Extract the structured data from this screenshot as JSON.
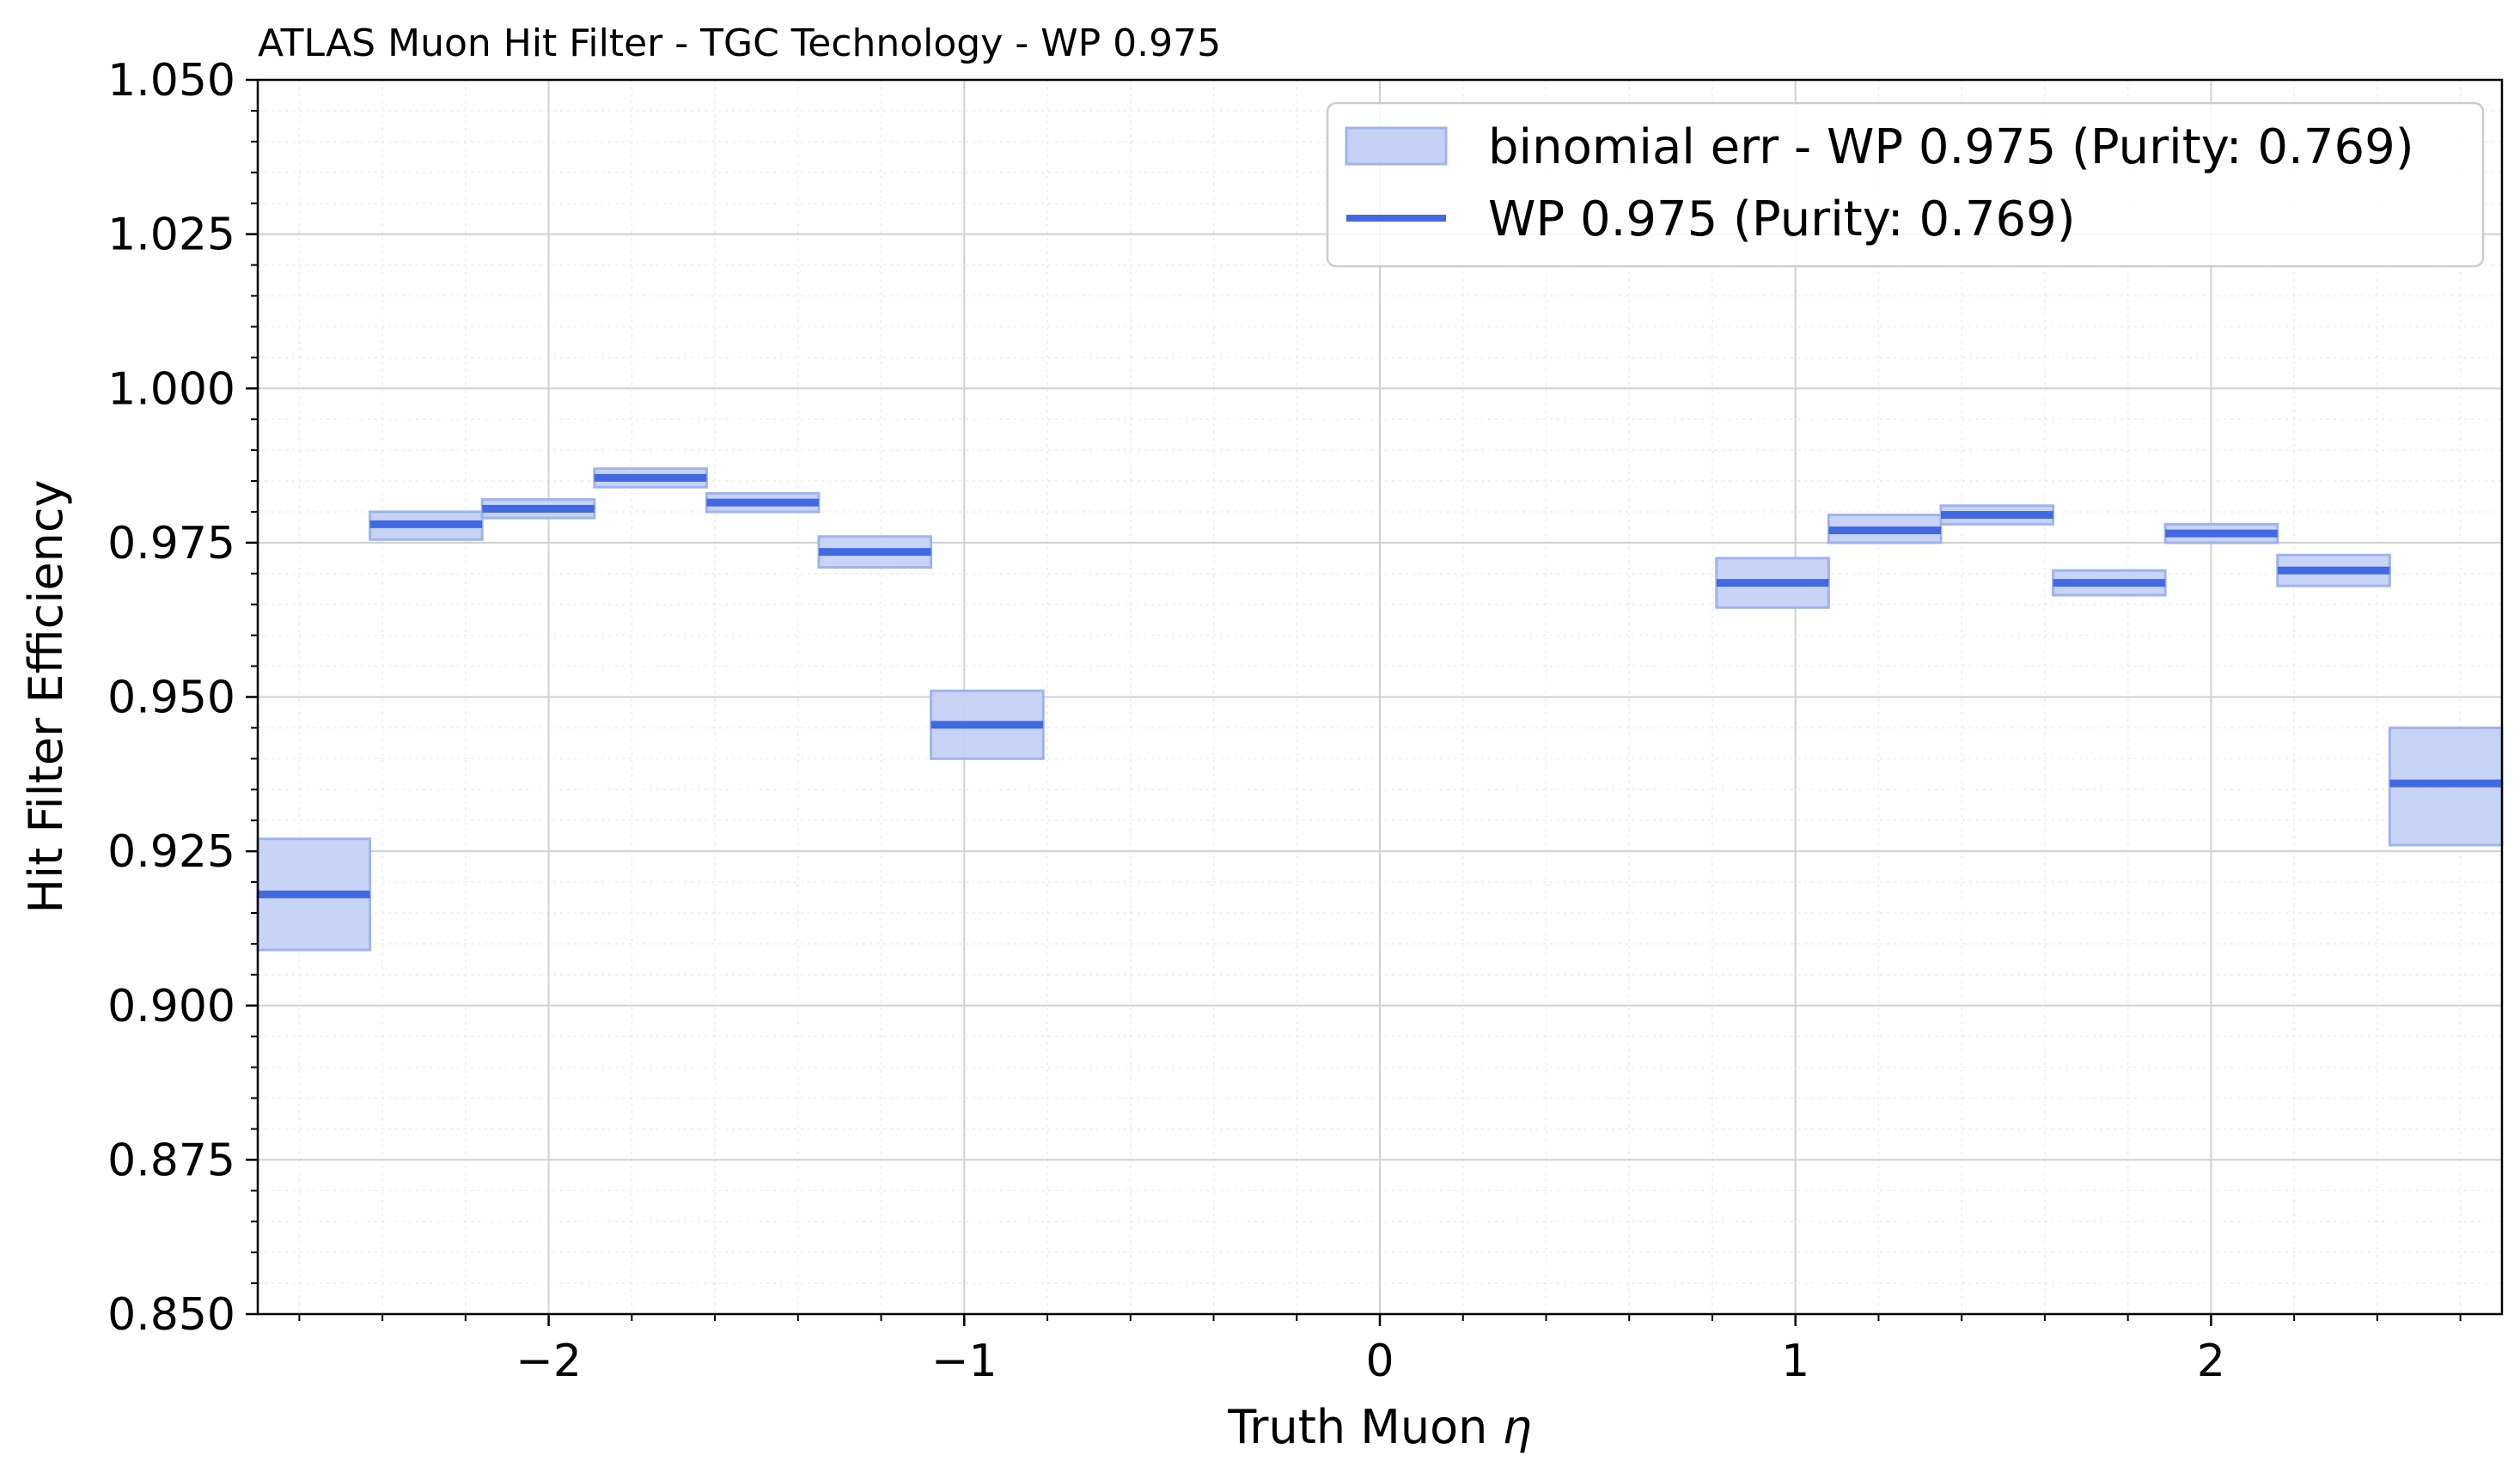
{
  "chart_data": {
    "type": "bar",
    "title": "ATLAS Muon Hit Filter - TGC Technology - WP 0.975",
    "xlabel_text": "Truth Muon ",
    "xlabel_symbol": "η",
    "ylabel": "Hit Filter Efficiency",
    "xlim": [
      -2.7,
      2.7
    ],
    "ylim": [
      0.85,
      1.05
    ],
    "x_ticks": [
      -2,
      -1,
      0,
      1,
      2
    ],
    "x_tick_labels": [
      "−2",
      "−1",
      "0",
      "1",
      "2"
    ],
    "y_ticks": [
      0.85,
      0.875,
      0.9,
      0.925,
      0.95,
      0.975,
      1.0,
      1.025,
      1.05
    ],
    "y_tick_labels": [
      "0.850",
      "0.875",
      "0.900",
      "0.925",
      "0.950",
      "0.975",
      "1.000",
      "1.025",
      "1.050"
    ],
    "grid": true,
    "minor_grid": true,
    "legend_position": "top-right",
    "colors": {
      "line": "#4169e1",
      "band_fill": "#c5d2f6",
      "band_edge": "#9fb3ee"
    },
    "series": [
      {
        "name": "WP 0.975 (Purity: 0.769)",
        "band_name": "binomial err - WP 0.975 (Purity: 0.769)",
        "bins": [
          {
            "x0": -2.7,
            "x1": -2.43,
            "value": 0.918,
            "low": 0.909,
            "high": 0.927
          },
          {
            "x0": -2.43,
            "x1": -2.16,
            "value": 0.978,
            "low": 0.9755,
            "high": 0.98
          },
          {
            "x0": -2.16,
            "x1": -1.89,
            "value": 0.9805,
            "low": 0.979,
            "high": 0.982
          },
          {
            "x0": -1.89,
            "x1": -1.62,
            "value": 0.9855,
            "low": 0.984,
            "high": 0.987
          },
          {
            "x0": -1.62,
            "x1": -1.35,
            "value": 0.9815,
            "low": 0.98,
            "high": 0.983
          },
          {
            "x0": -1.35,
            "x1": -1.08,
            "value": 0.9735,
            "low": 0.971,
            "high": 0.976
          },
          {
            "x0": -1.08,
            "x1": -0.81,
            "value": 0.9455,
            "low": 0.94,
            "high": 0.951
          },
          {
            "x0": 0.81,
            "x1": 1.08,
            "value": 0.9685,
            "low": 0.9645,
            "high": 0.9725
          },
          {
            "x0": 1.08,
            "x1": 1.35,
            "value": 0.977,
            "low": 0.975,
            "high": 0.9795
          },
          {
            "x0": 1.35,
            "x1": 1.62,
            "value": 0.9795,
            "low": 0.978,
            "high": 0.981
          },
          {
            "x0": 1.62,
            "x1": 1.89,
            "value": 0.9685,
            "low": 0.9665,
            "high": 0.9705
          },
          {
            "x0": 1.89,
            "x1": 2.16,
            "value": 0.9765,
            "low": 0.975,
            "high": 0.978
          },
          {
            "x0": 2.16,
            "x1": 2.43,
            "value": 0.9705,
            "low": 0.968,
            "high": 0.973
          },
          {
            "x0": 2.43,
            "x1": 2.7,
            "value": 0.936,
            "low": 0.926,
            "high": 0.945
          }
        ]
      }
    ]
  }
}
